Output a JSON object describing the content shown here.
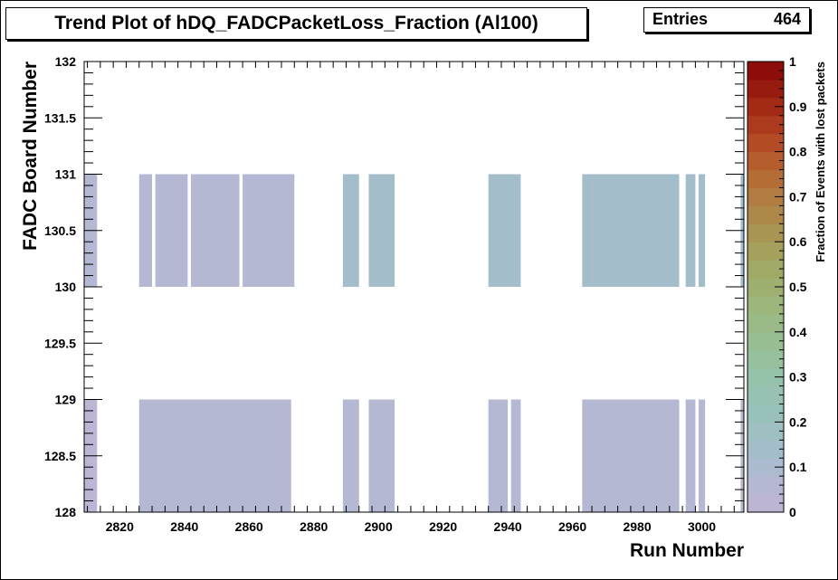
{
  "title": "Trend Plot of hDQ_FADCPacketLoss_Fraction (Al100)",
  "stats": {
    "label": "Entries",
    "value": "464"
  },
  "colors": {
    "low": "#bcb5d3",
    "mid": "#a5b3be"
  },
  "chart_data": {
    "type": "heatmap",
    "xlabel": "Run Number",
    "ylabel": "FADC Board Number",
    "zlabel": "Fraction of Events with lost packets",
    "xlim": [
      2809,
      3013
    ],
    "ylim": [
      128,
      132
    ],
    "zlim": [
      0,
      1
    ],
    "xticks": [
      "2820",
      "2840",
      "2860",
      "2880",
      "2900",
      "2920",
      "2940",
      "2960",
      "2980",
      "3000"
    ],
    "yticks": [
      "128",
      "128.5",
      "129",
      "129.5",
      "130",
      "130.5",
      "131",
      "131.5",
      "132"
    ],
    "zticks": [
      "0",
      "0.1",
      "0.2",
      "0.3",
      "0.4",
      "0.5",
      "0.6",
      "0.7",
      "0.8",
      "0.9",
      "1"
    ],
    "palette": [
      "#bdb5d4",
      "#b5b8d3",
      "#acbbcf",
      "#a4bdca",
      "#9ec0c3",
      "#99c1bc",
      "#97c2b3",
      "#96c2a9",
      "#97c19e",
      "#98be93",
      "#9abb88",
      "#9cb67c",
      "#9eb070",
      "#a0a965",
      "#a5a05c",
      "#a99553",
      "#ad8849",
      "#b17c40",
      "#b56d36",
      "#b65d2d",
      "#b34c24",
      "#ac3a1c",
      "#a32a15",
      "#981b10",
      "#8d0d0b"
    ],
    "cells": [
      {
        "y": 128,
        "runs": [
          [
            2809,
            2813
          ]
        ],
        "z": 0.03
      },
      {
        "y": 128,
        "runs": [
          [
            2826,
            2873
          ],
          [
            2889,
            2894
          ],
          [
            2897,
            2905
          ],
          [
            2934,
            2940
          ],
          [
            2941,
            2944
          ],
          [
            2963,
            2993
          ],
          [
            2995,
            2998
          ],
          [
            2999,
            3001
          ],
          [
            3012,
            3013
          ]
        ],
        "z": 0.05
      },
      {
        "y": 130,
        "runs": [
          [
            2809,
            2813
          ],
          [
            2826,
            2830
          ],
          [
            2831,
            2841
          ],
          [
            2842,
            2857
          ],
          [
            2858,
            2874
          ]
        ],
        "z": 0.04
      },
      {
        "y": 130,
        "runs": [
          [
            2889,
            2894
          ],
          [
            2897,
            2905
          ],
          [
            2934,
            2944
          ],
          [
            2963,
            2966
          ],
          [
            2966,
            2993
          ],
          [
            2995,
            2998
          ],
          [
            2999,
            3001
          ],
          [
            3012,
            3013
          ]
        ],
        "z": 0.12
      }
    ]
  }
}
